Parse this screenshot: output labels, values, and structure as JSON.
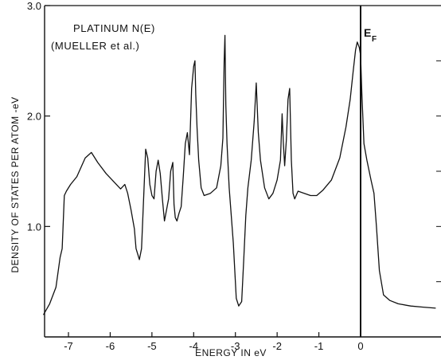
{
  "chart_data": {
    "type": "line",
    "title": "PLATINUM N(E)",
    "subtitle": "(MUELLER et al.)",
    "xlabel": "ENERGY IN eV",
    "ylabel": "DENSITY OF STATES PER ATOM -eV",
    "xlim": [
      -7.6,
      1.8
    ],
    "ylim": [
      0.0,
      3.0
    ],
    "x_ticks": [
      -7,
      -6,
      -5,
      -4,
      -3,
      -2,
      -1,
      0
    ],
    "x_tick_labels": [
      "-7",
      "-6",
      "-5",
      "-4",
      "-3",
      "-2",
      "-1",
      "0"
    ],
    "y_ticks": [
      1.0,
      2.0,
      3.0
    ],
    "y_tick_labels": [
      "1.0",
      "2.0",
      "3.0"
    ],
    "grid": false,
    "annotations": [
      {
        "text": "E",
        "subscript": "F",
        "x": 0.0,
        "note": "Fermi level vertical line"
      }
    ],
    "series": [
      {
        "x": [
          -7.6,
          -7.45,
          -7.3,
          -7.2,
          -7.15,
          -7.1,
          -7.05,
          -6.95,
          -6.8,
          -6.6,
          -6.45,
          -6.3,
          -6.1,
          -5.9,
          -5.75,
          -5.65,
          -5.58,
          -5.5,
          -5.42,
          -5.38,
          -5.3,
          -5.25,
          -5.2,
          -5.15,
          -5.1,
          -5.05,
          -5.0,
          -4.95,
          -4.9,
          -4.85,
          -4.8,
          -4.75,
          -4.7,
          -4.6,
          -4.55,
          -4.5,
          -4.47,
          -4.44,
          -4.4,
          -4.35,
          -4.3,
          -4.25,
          -4.2,
          -4.15,
          -4.1,
          -4.07,
          -4.05,
          -4.0,
          -3.97,
          -3.95,
          -3.92,
          -3.88,
          -3.82,
          -3.75,
          -3.6,
          -3.45,
          -3.35,
          -3.3,
          -3.27,
          -3.25,
          -3.23,
          -3.2,
          -3.15,
          -3.05,
          -2.98,
          -2.92,
          -2.85,
          -2.8,
          -2.75,
          -2.7,
          -2.62,
          -2.55,
          -2.5,
          -2.45,
          -2.4,
          -2.3,
          -2.2,
          -2.1,
          -2.0,
          -1.92,
          -1.88,
          -1.85,
          -1.82,
          -1.78,
          -1.74,
          -1.7,
          -1.66,
          -1.62,
          -1.58,
          -1.5,
          -1.35,
          -1.2,
          -1.05,
          -0.9,
          -0.7,
          -0.5,
          -0.35,
          -0.25,
          -0.18,
          -0.12,
          -0.08,
          -0.03,
          0.0,
          0.03,
          0.08,
          0.15,
          0.25,
          0.32,
          0.38,
          0.45,
          0.55,
          0.7,
          0.9,
          1.2,
          1.5,
          1.8
        ],
        "y": [
          0.2,
          0.3,
          0.45,
          0.72,
          0.8,
          1.28,
          1.32,
          1.38,
          1.45,
          1.62,
          1.67,
          1.58,
          1.48,
          1.4,
          1.34,
          1.38,
          1.3,
          1.15,
          0.98,
          0.8,
          0.7,
          0.8,
          1.25,
          1.7,
          1.62,
          1.38,
          1.28,
          1.25,
          1.5,
          1.6,
          1.48,
          1.25,
          1.05,
          1.25,
          1.5,
          1.58,
          1.2,
          1.08,
          1.05,
          1.12,
          1.18,
          1.45,
          1.75,
          1.85,
          1.65,
          2.0,
          2.25,
          2.45,
          2.5,
          2.2,
          1.9,
          1.6,
          1.35,
          1.28,
          1.3,
          1.35,
          1.55,
          1.8,
          2.5,
          2.73,
          2.1,
          1.75,
          1.35,
          0.85,
          0.35,
          0.28,
          0.32,
          0.7,
          1.1,
          1.35,
          1.6,
          1.95,
          2.3,
          1.85,
          1.6,
          1.35,
          1.25,
          1.3,
          1.42,
          1.6,
          2.02,
          1.75,
          1.55,
          1.78,
          2.15,
          2.25,
          1.6,
          1.3,
          1.25,
          1.32,
          1.3,
          1.28,
          1.28,
          1.33,
          1.42,
          1.62,
          1.9,
          2.15,
          2.4,
          2.6,
          2.67,
          2.62,
          2.55,
          2.2,
          1.75,
          1.6,
          1.42,
          1.3,
          1.0,
          0.6,
          0.38,
          0.33,
          0.3,
          0.28,
          0.27,
          0.26
        ]
      }
    ]
  }
}
